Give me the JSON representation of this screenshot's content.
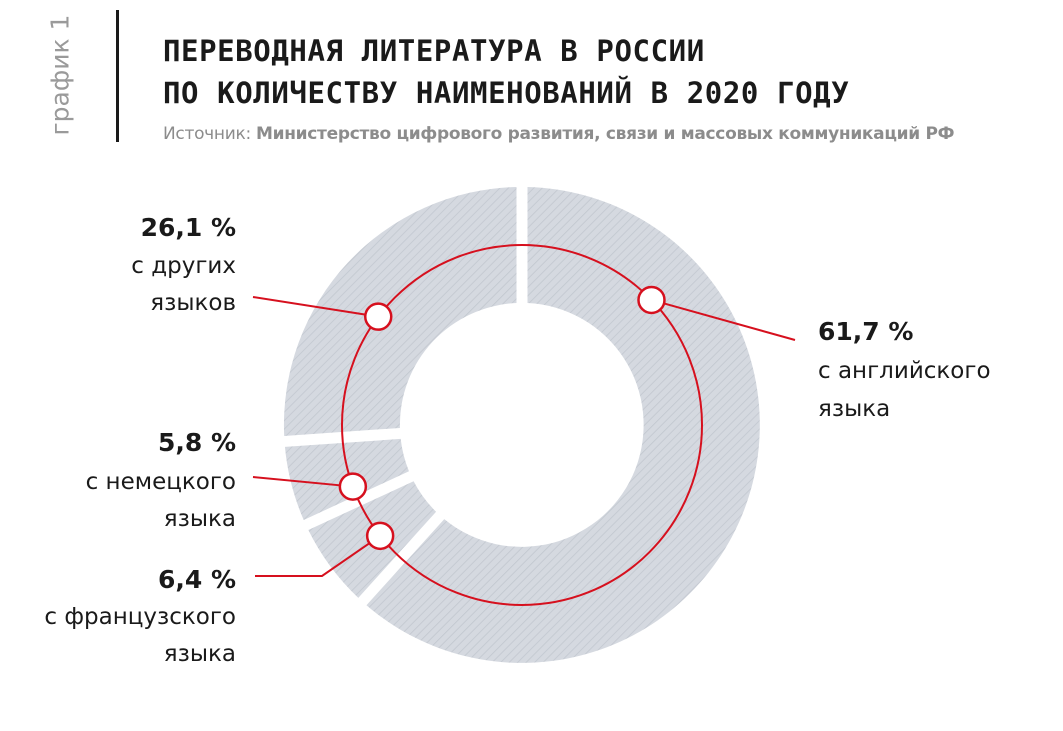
{
  "side_label": "график 1",
  "title": {
    "line1": "ПЕРЕВОДНАЯ ЛИТЕРАТУРА В РОССИИ",
    "line2": "ПО КОЛИЧЕСТВУ НАИМЕНОВАНИЙ В 2020 ГОДУ"
  },
  "source": {
    "prefix": "Источник:",
    "name": "Министерство цифрового развития, связи и массовых коммуникаций РФ"
  },
  "colors": {
    "slice_fill": "#d5d9e0",
    "hatch": "#c2c7cf",
    "accent": "#d6101e",
    "text": "#1a1a1a"
  },
  "chart_data": {
    "type": "pie",
    "variant": "donut",
    "title": "Переводная литература в России по количеству наименований в 2020 году",
    "start": "12 o'clock, clockwise",
    "unit": "%",
    "slices": [
      {
        "key": "english",
        "value": 61.7,
        "pct_label": "61,7 %",
        "line1": "с английского",
        "line2": "языка"
      },
      {
        "key": "french",
        "value": 6.4,
        "pct_label": "6,4 %",
        "line1": "с французского",
        "line2": "языка"
      },
      {
        "key": "german",
        "value": 5.8,
        "pct_label": "5,8 %",
        "line1": "с немецкого",
        "line2": "языка"
      },
      {
        "key": "other",
        "value": 26.1,
        "pct_label": "26,1 %",
        "line1": "с других",
        "line2": "языков"
      }
    ]
  }
}
